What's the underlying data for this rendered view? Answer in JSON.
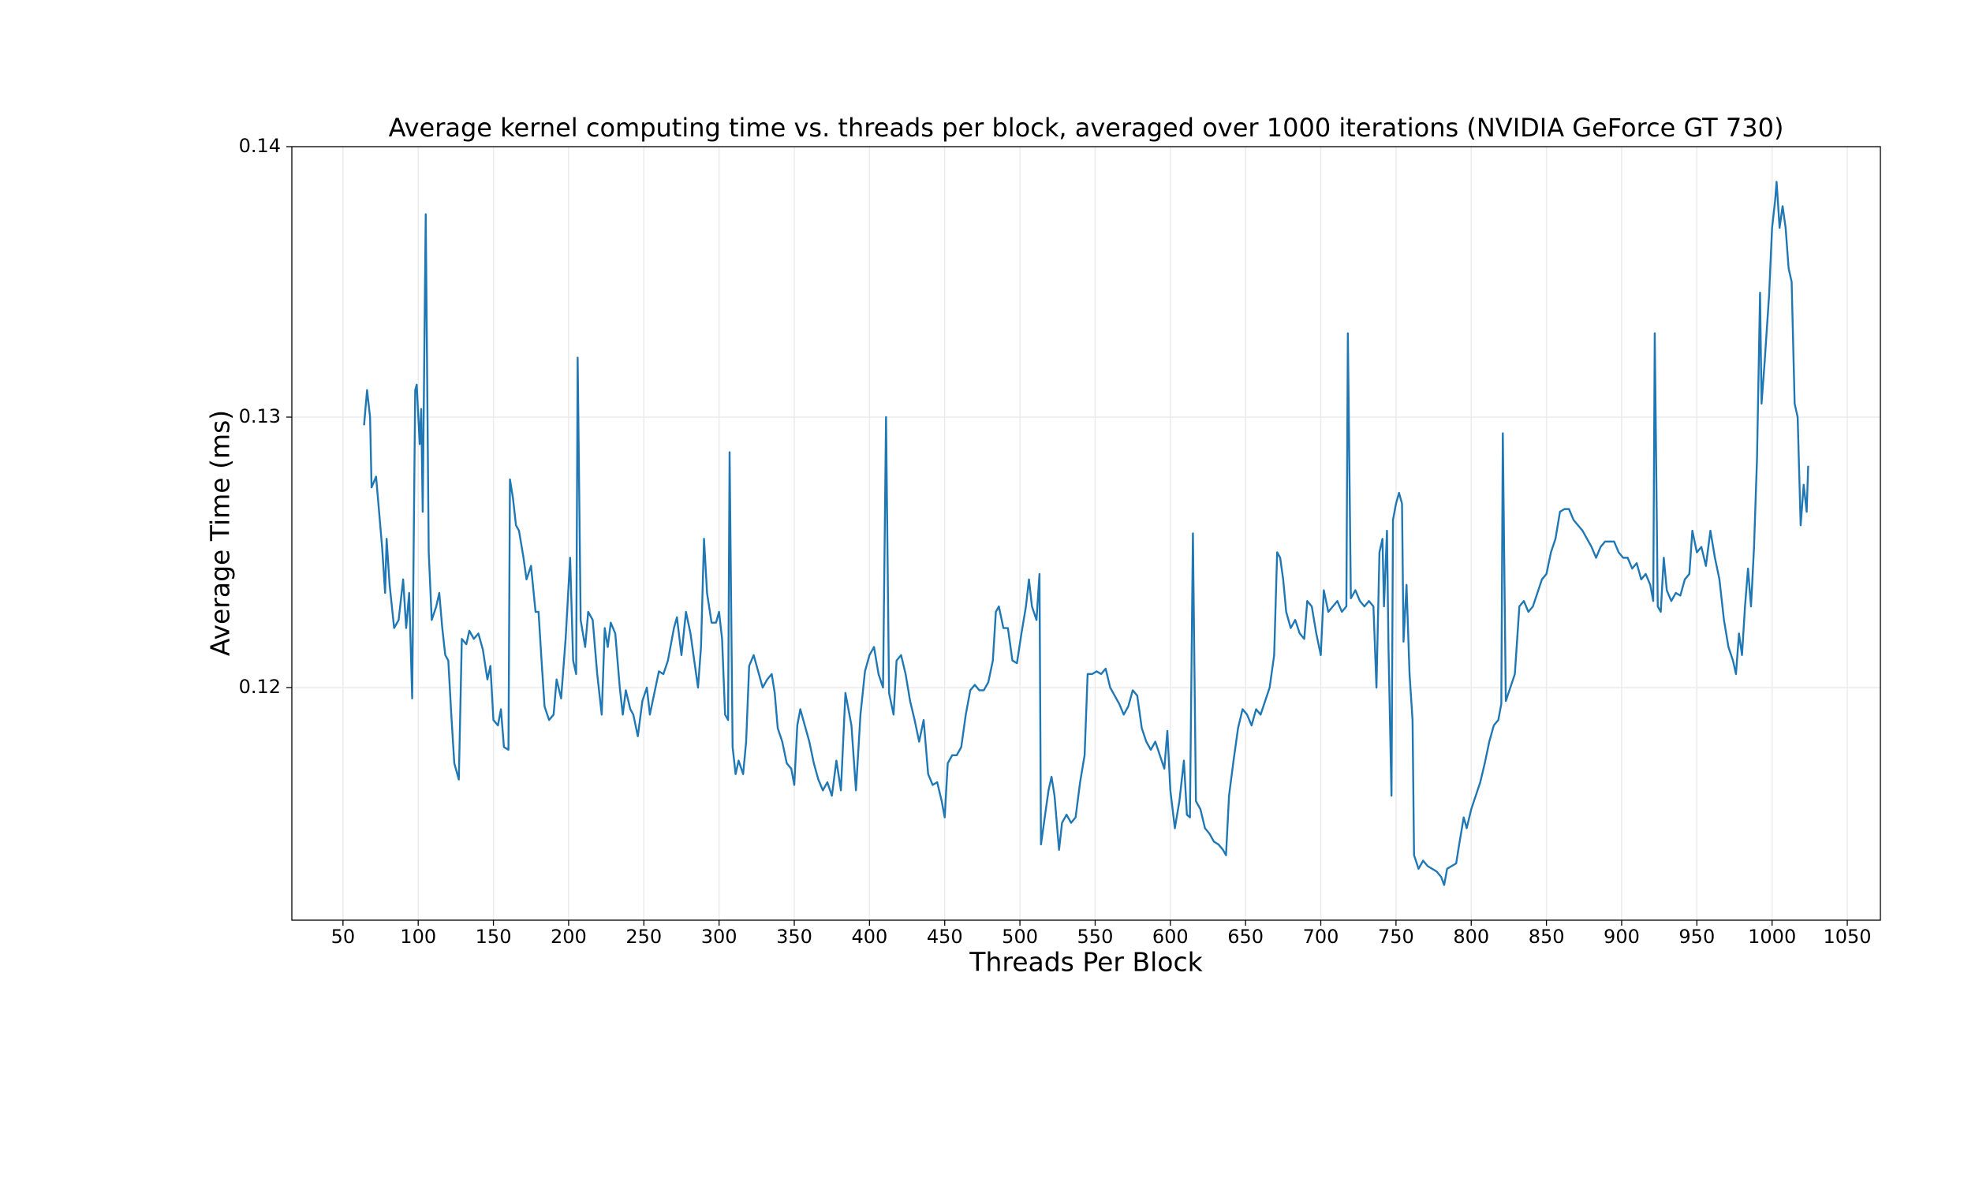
{
  "chart_data": {
    "type": "line",
    "title": "Average kernel computing time vs. threads per block, averaged over 1000 iterations (NVIDIA GeForce GT 730)",
    "x_label": "Threads Per Block",
    "y_label": "Average Time (ms)",
    "color": "#1f77b4",
    "grid": true,
    "xlim": [
      16,
      1072
    ],
    "ylim": [
      0.1114,
      0.14
    ],
    "xticks": [
      50,
      100,
      150,
      200,
      250,
      300,
      350,
      400,
      450,
      500,
      550,
      600,
      650,
      700,
      750,
      800,
      850,
      900,
      950,
      1000,
      1050
    ],
    "yticks": [
      0.12,
      0.13,
      0.14
    ],
    "x": [
      64,
      66,
      68,
      69,
      72,
      74,
      76,
      78,
      79,
      81,
      84,
      87,
      90,
      92,
      94,
      96,
      98,
      99,
      101,
      102,
      103,
      105,
      107,
      109,
      112,
      114,
      116,
      118,
      120,
      122,
      124,
      127,
      129,
      132,
      134,
      137,
      140,
      143,
      146,
      148,
      150,
      153,
      155,
      157,
      160,
      161,
      163,
      165,
      167,
      170,
      172,
      175,
      178,
      180,
      182,
      184,
      187,
      190,
      192,
      195,
      198,
      201,
      203,
      205,
      206,
      208,
      211,
      213,
      216,
      219,
      222,
      224,
      226,
      228,
      231,
      234,
      236,
      238,
      241,
      243,
      246,
      249,
      252,
      254,
      257,
      260,
      263,
      266,
      270,
      272,
      275,
      278,
      281,
      284,
      286,
      288,
      290,
      292,
      295,
      298,
      300,
      302,
      304,
      306,
      307,
      309,
      311,
      313,
      316,
      318,
      320,
      323,
      326,
      329,
      332,
      335,
      337,
      339,
      342,
      345,
      348,
      350,
      352,
      354,
      357,
      360,
      363,
      366,
      369,
      372,
      375,
      378,
      381,
      384,
      386,
      388,
      391,
      394,
      397,
      400,
      403,
      406,
      409,
      411,
      413,
      416,
      418,
      421,
      424,
      427,
      430,
      433,
      436,
      439,
      442,
      445,
      448,
      450,
      452,
      455,
      458,
      461,
      464,
      467,
      470,
      473,
      476,
      479,
      482,
      484,
      486,
      489,
      492,
      495,
      498,
      501,
      504,
      506,
      508,
      511,
      513,
      514,
      516,
      519,
      521,
      523,
      526,
      528,
      531,
      534,
      537,
      540,
      543,
      545,
      548,
      551,
      554,
      557,
      560,
      563,
      566,
      569,
      572,
      575,
      578,
      581,
      584,
      587,
      590,
      593,
      596,
      598,
      600,
      603,
      606,
      609,
      611,
      613,
      615,
      617,
      620,
      623,
      626,
      629,
      632,
      635,
      637,
      639,
      642,
      645,
      648,
      651,
      654,
      657,
      660,
      663,
      666,
      669,
      671,
      673,
      675,
      677,
      680,
      683,
      686,
      689,
      691,
      694,
      697,
      700,
      702,
      705,
      708,
      711,
      714,
      717,
      718,
      720,
      723,
      726,
      729,
      732,
      735,
      737,
      739,
      741,
      742,
      744,
      745,
      747,
      748,
      750,
      752,
      754,
      755,
      757,
      759,
      761,
      762,
      765,
      768,
      771,
      774,
      777,
      780,
      782,
      784,
      787,
      790,
      792,
      795,
      797,
      800,
      803,
      806,
      809,
      812,
      815,
      818,
      820,
      821,
      823,
      826,
      829,
      832,
      835,
      838,
      841,
      844,
      847,
      850,
      853,
      856,
      859,
      862,
      865,
      868,
      871,
      874,
      877,
      880,
      883,
      886,
      889,
      892,
      895,
      898,
      901,
      904,
      907,
      910,
      913,
      916,
      919,
      921,
      922,
      924,
      926,
      928,
      930,
      933,
      936,
      939,
      942,
      945,
      947,
      950,
      953,
      956,
      959,
      962,
      965,
      968,
      971,
      974,
      976,
      978,
      980,
      982,
      984,
      986,
      988,
      990,
      992,
      993,
      995,
      998,
      1000,
      1002,
      1003,
      1005,
      1007,
      1009,
      1011,
      1013,
      1015,
      1017,
      1019,
      1021,
      1023,
      1024
    ],
    "values": [
      0.1297,
      0.131,
      0.13,
      0.1274,
      0.1278,
      0.1265,
      0.1252,
      0.1235,
      0.1255,
      0.1238,
      0.1222,
      0.1225,
      0.124,
      0.1222,
      0.1235,
      0.1196,
      0.131,
      0.1312,
      0.129,
      0.1303,
      0.1265,
      0.1375,
      0.125,
      0.1225,
      0.123,
      0.1235,
      0.1222,
      0.1212,
      0.121,
      0.119,
      0.1172,
      0.1166,
      0.1218,
      0.1216,
      0.1221,
      0.1218,
      0.122,
      0.1214,
      0.1203,
      0.1208,
      0.1188,
      0.1186,
      0.1192,
      0.1178,
      0.1177,
      0.1277,
      0.127,
      0.126,
      0.1258,
      0.1248,
      0.124,
      0.1245,
      0.1228,
      0.1228,
      0.121,
      0.1193,
      0.1188,
      0.119,
      0.1203,
      0.1196,
      0.1218,
      0.1248,
      0.121,
      0.1205,
      0.1322,
      0.1225,
      0.1215,
      0.1228,
      0.1225,
      0.1205,
      0.119,
      0.1222,
      0.1215,
      0.1224,
      0.122,
      0.12,
      0.119,
      0.1199,
      0.1192,
      0.119,
      0.1182,
      0.1195,
      0.12,
      0.119,
      0.1198,
      0.1206,
      0.1205,
      0.121,
      0.1222,
      0.1226,
      0.1212,
      0.1228,
      0.122,
      0.1208,
      0.12,
      0.1215,
      0.1255,
      0.1235,
      0.1224,
      0.1224,
      0.1228,
      0.1218,
      0.119,
      0.1188,
      0.1287,
      0.1178,
      0.1168,
      0.1173,
      0.1168,
      0.118,
      0.1208,
      0.1212,
      0.1206,
      0.12,
      0.1203,
      0.1205,
      0.1198,
      0.1185,
      0.118,
      0.1172,
      0.117,
      0.1164,
      0.1186,
      0.1192,
      0.1186,
      0.118,
      0.1172,
      0.1166,
      0.1162,
      0.1165,
      0.116,
      0.1173,
      0.1162,
      0.1198,
      0.1192,
      0.1186,
      0.1162,
      0.119,
      0.1206,
      0.1212,
      0.1215,
      0.1205,
      0.12,
      0.13,
      0.1198,
      0.119,
      0.121,
      0.1212,
      0.1205,
      0.1195,
      0.1188,
      0.118,
      0.1188,
      0.1168,
      0.1164,
      0.1165,
      0.1158,
      0.1152,
      0.1172,
      0.1175,
      0.1175,
      0.1178,
      0.119,
      0.1199,
      0.1201,
      0.1199,
      0.1199,
      0.1202,
      0.121,
      0.1228,
      0.123,
      0.1222,
      0.1222,
      0.121,
      0.1209,
      0.122,
      0.123,
      0.124,
      0.123,
      0.1225,
      0.1242,
      0.1142,
      0.115,
      0.1162,
      0.1167,
      0.116,
      0.114,
      0.115,
      0.1153,
      0.115,
      0.1152,
      0.1165,
      0.1175,
      0.1205,
      0.1205,
      0.1206,
      0.1205,
      0.1207,
      0.12,
      0.1197,
      0.1194,
      0.119,
      0.1193,
      0.1199,
      0.1197,
      0.1185,
      0.118,
      0.1177,
      0.118,
      0.1175,
      0.117,
      0.1184,
      0.1162,
      0.1148,
      0.1158,
      0.1173,
      0.1153,
      0.1152,
      0.1257,
      0.1158,
      0.1155,
      0.1148,
      0.1146,
      0.1143,
      0.1142,
      0.114,
      0.1138,
      0.116,
      0.1173,
      0.1185,
      0.1192,
      0.119,
      0.1186,
      0.1192,
      0.119,
      0.1195,
      0.12,
      0.1212,
      0.125,
      0.1248,
      0.124,
      0.1228,
      0.1222,
      0.1225,
      0.122,
      0.1218,
      0.1232,
      0.123,
      0.122,
      0.1212,
      0.1236,
      0.1228,
      0.123,
      0.1232,
      0.1228,
      0.123,
      0.1331,
      0.1233,
      0.1236,
      0.1232,
      0.123,
      0.1232,
      0.123,
      0.12,
      0.125,
      0.1255,
      0.123,
      0.1258,
      0.1215,
      0.116,
      0.1262,
      0.1268,
      0.1272,
      0.1268,
      0.1217,
      0.1238,
      0.1205,
      0.1188,
      0.1138,
      0.1133,
      0.1136,
      0.1134,
      0.1133,
      0.1132,
      0.113,
      0.1127,
      0.1133,
      0.1134,
      0.1135,
      0.1142,
      0.1152,
      0.1148,
      0.1155,
      0.116,
      0.1165,
      0.1172,
      0.118,
      0.1186,
      0.1188,
      0.1194,
      0.1294,
      0.1195,
      0.12,
      0.1205,
      0.123,
      0.1232,
      0.1228,
      0.123,
      0.1235,
      0.124,
      0.1242,
      0.125,
      0.1255,
      0.1265,
      0.1266,
      0.1266,
      0.1262,
      0.126,
      0.1258,
      0.1255,
      0.1252,
      0.1248,
      0.1252,
      0.1254,
      0.1254,
      0.1254,
      0.125,
      0.1248,
      0.1248,
      0.1244,
      0.1246,
      0.124,
      0.1242,
      0.1238,
      0.1232,
      0.1331,
      0.123,
      0.1228,
      0.1248,
      0.1236,
      0.1232,
      0.1235,
      0.1234,
      0.124,
      0.1242,
      0.1258,
      0.125,
      0.1252,
      0.1245,
      0.1258,
      0.1248,
      0.124,
      0.1225,
      0.1215,
      0.121,
      0.1205,
      0.122,
      0.1212,
      0.123,
      0.1244,
      0.123,
      0.1252,
      0.1285,
      0.1346,
      0.1305,
      0.132,
      0.1345,
      0.137,
      0.138,
      0.1387,
      0.137,
      0.1378,
      0.137,
      0.1355,
      0.135,
      0.1305,
      0.13,
      0.126,
      0.1275,
      0.1265,
      0.1282
    ]
  }
}
